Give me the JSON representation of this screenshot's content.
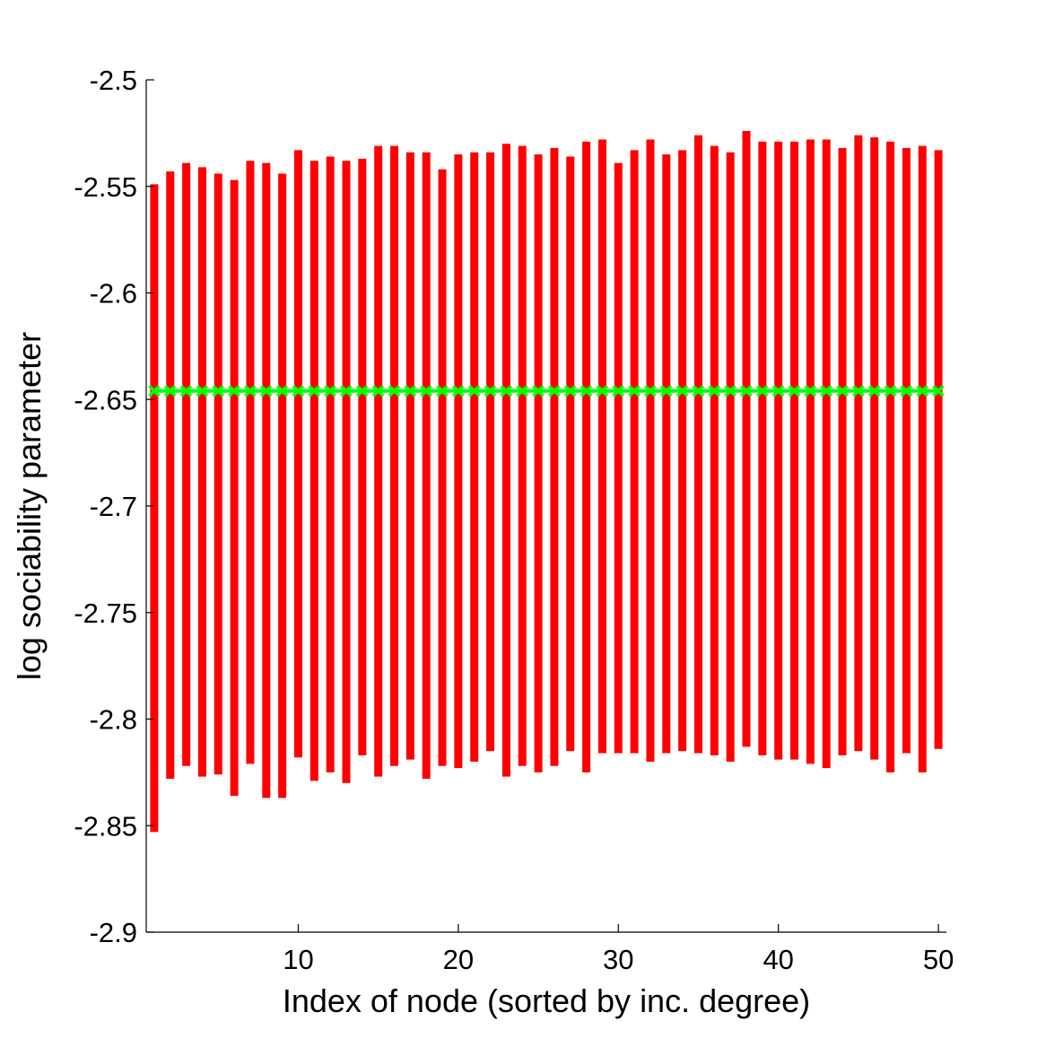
{
  "chart_data": {
    "type": "errorbar",
    "xlabel": "Index of node (sorted by inc. degree)",
    "ylabel": "log sociability parameter",
    "xlim": [
      0.5,
      50.5
    ],
    "ylim": [
      -2.9,
      -2.5
    ],
    "xticks": [
      10,
      20,
      30,
      40,
      50
    ],
    "yticks": [
      -2.5,
      -2.55,
      -2.6,
      -2.65,
      -2.7,
      -2.75,
      -2.8,
      -2.85,
      -2.9
    ],
    "x": [
      1,
      2,
      3,
      4,
      5,
      6,
      7,
      8,
      9,
      10,
      11,
      12,
      13,
      14,
      15,
      16,
      17,
      18,
      19,
      20,
      21,
      22,
      23,
      24,
      25,
      26,
      27,
      28,
      29,
      30,
      31,
      32,
      33,
      34,
      35,
      36,
      37,
      38,
      39,
      40,
      41,
      42,
      43,
      44,
      45,
      46,
      47,
      48,
      49,
      50
    ],
    "series": [
      {
        "kind": "interval",
        "color": "#ff0000",
        "upper": [
          -2.549,
          -2.543,
          -2.539,
          -2.541,
          -2.544,
          -2.547,
          -2.538,
          -2.539,
          -2.544,
          -2.533,
          -2.538,
          -2.536,
          -2.538,
          -2.537,
          -2.531,
          -2.531,
          -2.534,
          -2.534,
          -2.542,
          -2.535,
          -2.534,
          -2.534,
          -2.53,
          -2.531,
          -2.535,
          -2.532,
          -2.536,
          -2.529,
          -2.528,
          -2.539,
          -2.533,
          -2.528,
          -2.535,
          -2.533,
          -2.526,
          -2.531,
          -2.534,
          -2.524,
          -2.529,
          -2.529,
          -2.529,
          -2.528,
          -2.528,
          -2.532,
          -2.526,
          -2.527,
          -2.529,
          -2.532,
          -2.531,
          -2.533
        ],
        "lower": [
          -2.853,
          -2.828,
          -2.822,
          -2.827,
          -2.826,
          -2.836,
          -2.821,
          -2.837,
          -2.837,
          -2.818,
          -2.829,
          -2.825,
          -2.83,
          -2.817,
          -2.827,
          -2.822,
          -2.819,
          -2.828,
          -2.822,
          -2.823,
          -2.82,
          -2.815,
          -2.827,
          -2.822,
          -2.825,
          -2.822,
          -2.815,
          -2.825,
          -2.816,
          -2.816,
          -2.816,
          -2.82,
          -2.816,
          -2.815,
          -2.816,
          -2.817,
          -2.82,
          -2.813,
          -2.817,
          -2.819,
          -2.819,
          -2.821,
          -2.823,
          -2.817,
          -2.815,
          -2.819,
          -2.825,
          -2.816,
          -2.825,
          -2.814
        ]
      },
      {
        "kind": "marker",
        "marker": "x",
        "color": "#00ff00",
        "values": [
          -2.646,
          -2.646,
          -2.646,
          -2.646,
          -2.646,
          -2.646,
          -2.646,
          -2.646,
          -2.646,
          -2.646,
          -2.646,
          -2.646,
          -2.646,
          -2.646,
          -2.646,
          -2.646,
          -2.646,
          -2.646,
          -2.646,
          -2.646,
          -2.646,
          -2.646,
          -2.646,
          -2.646,
          -2.646,
          -2.646,
          -2.646,
          -2.646,
          -2.646,
          -2.646,
          -2.646,
          -2.646,
          -2.646,
          -2.646,
          -2.646,
          -2.646,
          -2.646,
          -2.646,
          -2.646,
          -2.646,
          -2.646,
          -2.646,
          -2.646,
          -2.646,
          -2.646,
          -2.646,
          -2.646,
          -2.646,
          -2.646,
          -2.646
        ]
      }
    ],
    "grid": false,
    "box": "left-bottom"
  }
}
